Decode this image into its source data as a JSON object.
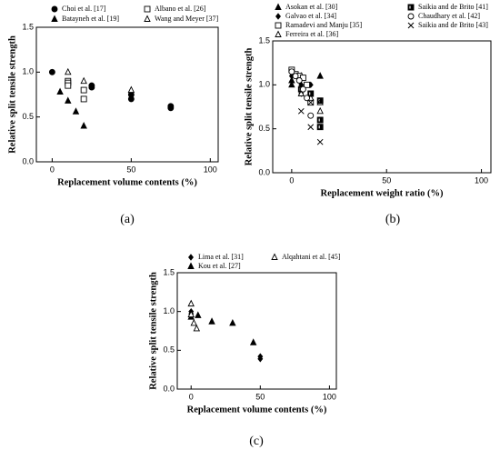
{
  "chart_data": [
    {
      "type": "scatter",
      "caption": "(a)",
      "xlabel": "Replacement volume contents (%)",
      "ylabel": "Relative split tensile strength",
      "xlim": [
        -10,
        105
      ],
      "ylim": [
        0,
        1.5
      ],
      "xticks": [
        0,
        50,
        100
      ],
      "yticks": [
        {
          "value": 0,
          "label": "0.0"
        },
        {
          "value": 0.5,
          "label": "0.5"
        },
        {
          "value": 1,
          "label": "1.0"
        },
        {
          "value": 1.5,
          "label": "1.5"
        }
      ],
      "series": [
        {
          "name": "Choi et al. [17]",
          "marker": "circle",
          "color": "#000000",
          "x": [
            0,
            25,
            25,
            50,
            50,
            75,
            75
          ],
          "values": [
            1.0,
            0.85,
            0.83,
            0.75,
            0.7,
            0.62,
            0.6
          ]
        },
        {
          "name": "Batayneh et al. [19]",
          "marker": "triangle",
          "color": "#000000",
          "x": [
            5,
            10,
            15,
            20
          ],
          "values": [
            0.78,
            0.68,
            0.56,
            0.4
          ]
        },
        {
          "name": "Albano et al. [26]",
          "marker": "square-open",
          "color": "#000000",
          "x": [
            10,
            10,
            10,
            20,
            20
          ],
          "values": [
            0.9,
            0.88,
            0.85,
            0.8,
            0.7
          ]
        },
        {
          "name": "Wang and Meyer [37]",
          "marker": "triangle-open",
          "color": "#000000",
          "x": [
            10,
            20,
            50
          ],
          "values": [
            1.0,
            0.9,
            0.8
          ]
        }
      ]
    },
    {
      "type": "scatter",
      "caption": "(b)",
      "xlabel": "Replacement weight ratio (%)",
      "ylabel": "Relative split tensile strength",
      "xlim": [
        -10,
        105
      ],
      "ylim": [
        0,
        1.5
      ],
      "xticks": [
        0,
        50,
        100
      ],
      "yticks": [
        {
          "value": 0,
          "label": "0.0"
        },
        {
          "value": 0.5,
          "label": "0.5"
        },
        {
          "value": 1,
          "label": "1.0"
        },
        {
          "value": 1.5,
          "label": "1.5"
        }
      ],
      "series": [
        {
          "name": "Asokan et al. [30]",
          "marker": "triangle",
          "color": "#000000",
          "x": [
            0,
            0,
            5,
            15
          ],
          "values": [
            1.0,
            1.05,
            1.1,
            1.1
          ]
        },
        {
          "name": "Galvao et al. [34]",
          "marker": "diamond",
          "color": "#000000",
          "x": [
            0,
            0,
            5,
            5,
            10
          ],
          "values": [
            1.15,
            1.1,
            1.0,
            0.9,
            1.0
          ]
        },
        {
          "name": "Ramadevi and Manju [35]",
          "marker": "square-open",
          "color": "#000000",
          "x": [
            0,
            2,
            4,
            6,
            8,
            10
          ],
          "values": [
            1.17,
            1.12,
            1.1,
            1.08,
            1.0,
            0.8
          ]
        },
        {
          "name": "Ferreira et al. [36]",
          "marker": "triangle-open",
          "color": "#000000",
          "x": [
            5,
            10,
            15,
            15
          ],
          "values": [
            0.9,
            0.85,
            0.8,
            0.7
          ]
        },
        {
          "name": "Saikia and de Brito [41]",
          "marker": "square-half",
          "color": "#000000",
          "x": [
            5,
            10,
            15,
            15,
            15
          ],
          "values": [
            0.95,
            0.9,
            0.82,
            0.6,
            0.52
          ]
        },
        {
          "name": "Chaudhary et al. [42]",
          "marker": "circle-open",
          "color": "#000000",
          "x": [
            0,
            2,
            4,
            6,
            8,
            10
          ],
          "values": [
            1.15,
            1.1,
            1.05,
            0.95,
            0.85,
            0.65
          ]
        },
        {
          "name": "Saikia and de Brito [43]",
          "marker": "x",
          "color": "#000000",
          "x": [
            5,
            10,
            10,
            15
          ],
          "values": [
            0.7,
            0.8,
            0.52,
            0.35
          ]
        }
      ]
    },
    {
      "type": "scatter",
      "caption": "(c)",
      "xlabel": "Replacement volume contents (%)",
      "ylabel": "Relative split tensile strength",
      "xlim": [
        -10,
        105
      ],
      "ylim": [
        0,
        1.5
      ],
      "xticks": [
        0,
        50,
        100
      ],
      "yticks": [
        {
          "value": 0,
          "label": "0.0"
        },
        {
          "value": 0.5,
          "label": "0.5"
        },
        {
          "value": 1,
          "label": "1.0"
        },
        {
          "value": 1.5,
          "label": "1.5"
        }
      ],
      "series": [
        {
          "name": "Lima et al. [31]",
          "marker": "diamond",
          "color": "#000000",
          "x": [
            0,
            0,
            50,
            50
          ],
          "values": [
            1.0,
            0.97,
            0.42,
            0.39
          ]
        },
        {
          "name": "Kou et al. [27]",
          "marker": "triangle",
          "color": "#000000",
          "x": [
            0,
            5,
            15,
            30,
            45
          ],
          "values": [
            0.93,
            0.95,
            0.87,
            0.85,
            0.6
          ]
        },
        {
          "name": "Alqahtani et al. [45]",
          "marker": "triangle-open",
          "color": "#000000",
          "x": [
            0,
            0,
            2,
            4
          ],
          "values": [
            1.1,
            0.96,
            0.85,
            0.78
          ]
        }
      ]
    }
  ]
}
